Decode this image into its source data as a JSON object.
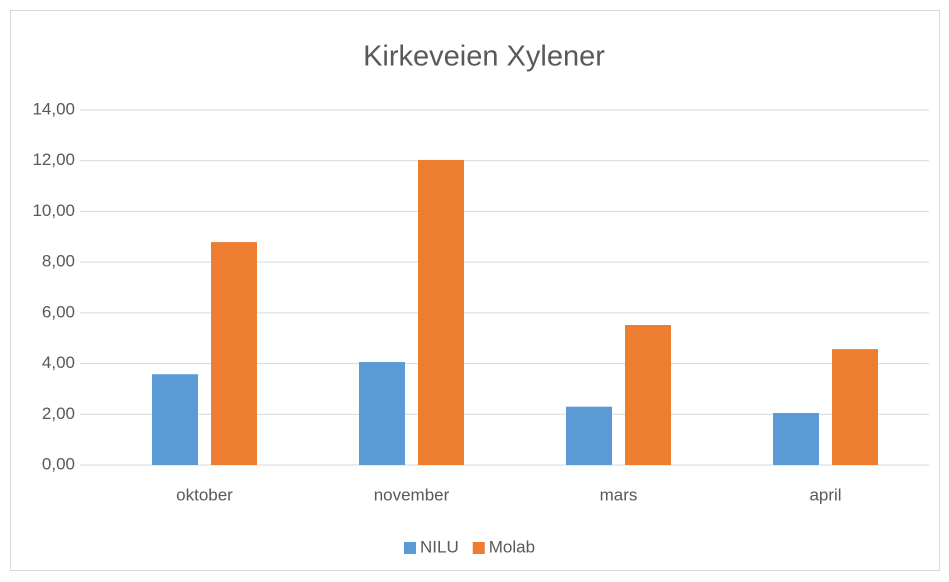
{
  "chart_data": {
    "type": "bar",
    "title": "Kirkeveien Xylener",
    "categories": [
      "oktober",
      "november",
      "mars",
      "april"
    ],
    "series": [
      {
        "name": "NILU",
        "color": "#5b9bd5",
        "values": [
          3.58,
          4.06,
          2.3,
          2.05
        ]
      },
      {
        "name": "Molab",
        "color": "#ed7d31",
        "values": [
          8.79,
          12.03,
          5.52,
          4.57
        ]
      }
    ],
    "ylim": [
      0,
      14
    ],
    "yticks": [
      {
        "value": 0,
        "label": "0,00"
      },
      {
        "value": 2,
        "label": "2,00"
      },
      {
        "value": 4,
        "label": "4,00"
      },
      {
        "value": 6,
        "label": "6,00"
      },
      {
        "value": 8,
        "label": "8,00"
      },
      {
        "value": 10,
        "label": "10,00"
      },
      {
        "value": 12,
        "label": "12,00"
      },
      {
        "value": 14,
        "label": "14,00"
      }
    ],
    "grid": true,
    "legend": "bottom"
  }
}
